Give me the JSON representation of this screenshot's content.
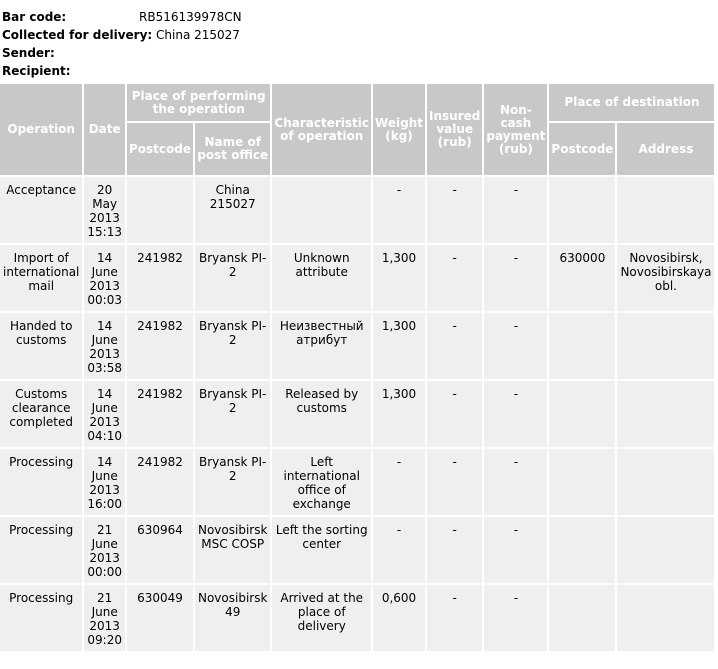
{
  "info": {
    "barcode_label": "Bar code:",
    "barcode_value": "RB516139978CN",
    "collected_label": "Collected for delivery:",
    "collected_value": "China 215027",
    "sender_label": "Sender:",
    "recipient_label": "Recipient:"
  },
  "headers": {
    "operation": "Operation",
    "date": "Date",
    "place_perf": "Place of performing the operation",
    "postcode": "Postcode",
    "post_office": "Name of post office",
    "characteristic": "Characteristic of operation",
    "weight": "Weight (kg)",
    "insured": "Insured value (rub)",
    "noncash": "Non-cash payment (rub)",
    "place_dest": "Place of destination",
    "dest_postcode": "Postcode",
    "address": "Address"
  },
  "rows": [
    {
      "operation": "Acceptance",
      "date": "20 May 2013 15:13",
      "postcode": "",
      "office": "China 215027",
      "characteristic": "",
      "weight": "-",
      "insured": "-",
      "noncash": "-",
      "dest_postcode": "",
      "address": ""
    },
    {
      "operation": "Import of international mail",
      "date": "14 June 2013 00:03",
      "postcode": "241982",
      "office": "Bryansk PI-2",
      "characteristic": "Unknown attribute",
      "weight": "1,300",
      "insured": "-",
      "noncash": "-",
      "dest_postcode": "630000",
      "address": "Novosibirsk, Novosibirskaya obl."
    },
    {
      "operation": "Handed to customs",
      "date": "14 June 2013 03:58",
      "postcode": "241982",
      "office": "Bryansk PI-2",
      "characteristic": "Неизвестный атрибут",
      "weight": "1,300",
      "insured": "-",
      "noncash": "-",
      "dest_postcode": "",
      "address": ""
    },
    {
      "operation": "Customs clearance completed",
      "date": "14 June 2013 04:10",
      "postcode": "241982",
      "office": "Bryansk PI-2",
      "characteristic": "Released by customs",
      "weight": "1,300",
      "insured": "-",
      "noncash": "-",
      "dest_postcode": "",
      "address": ""
    },
    {
      "operation": "Processing",
      "date": "14 June 2013 16:00",
      "postcode": "241982",
      "office": "Bryansk PI-2",
      "characteristic": "Left international office of exchange",
      "weight": "-",
      "insured": "-",
      "noncash": "-",
      "dest_postcode": "",
      "address": ""
    },
    {
      "operation": "Processing",
      "date": "21 June 2013 00:00",
      "postcode": "630964",
      "office": "Novosibirsk MSC COSP",
      "characteristic": "Left the sorting center",
      "weight": "-",
      "insured": "-",
      "noncash": "-",
      "dest_postcode": "",
      "address": ""
    },
    {
      "operation": "Processing",
      "date": "21 June 2013 09:20",
      "postcode": "630049",
      "office": "Novosibirsk 49",
      "characteristic": "Arrived at the place of delivery",
      "weight": "0,600",
      "insured": "-",
      "noncash": "-",
      "dest_postcode": "",
      "address": ""
    }
  ]
}
